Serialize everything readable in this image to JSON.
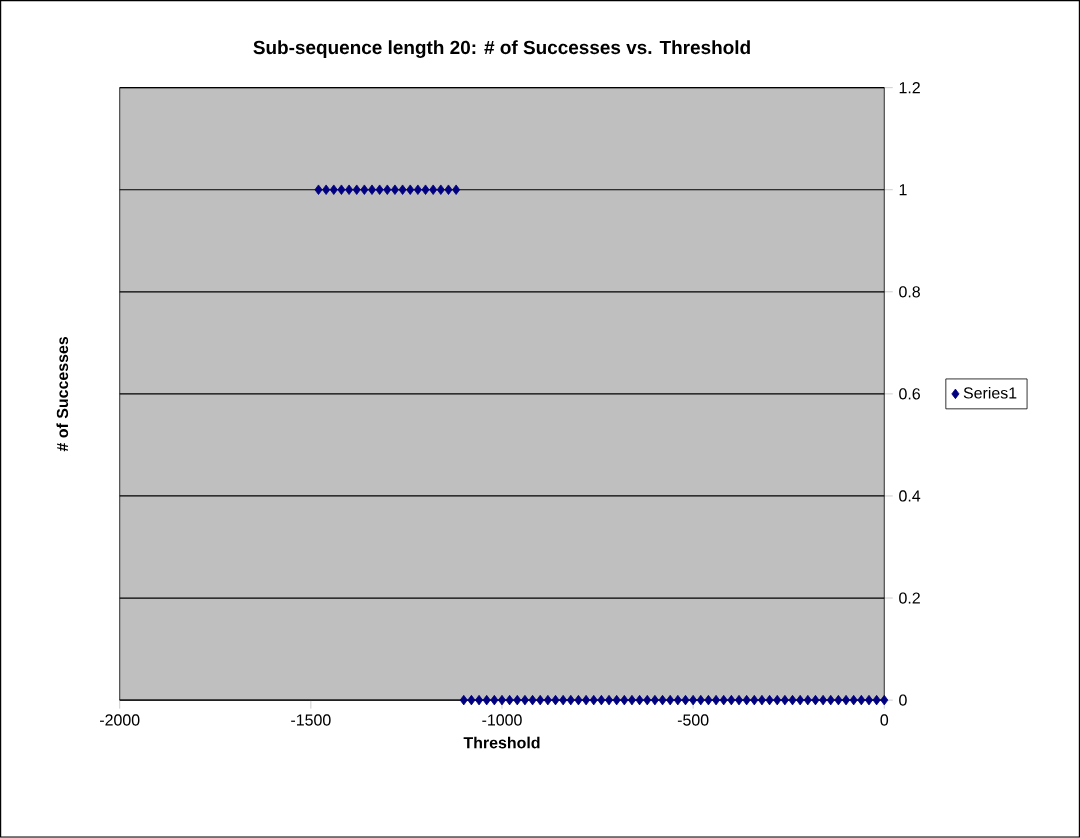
{
  "chart_data": {
    "type": "scatter",
    "title": "Sub-sequence length 20: # of Successes vs. Threshold",
    "xlabel": "Threshold",
    "ylabel": "# of Successes",
    "x": [
      -1480,
      -1460,
      -1440,
      -1420,
      -1400,
      -1380,
      -1360,
      -1340,
      -1320,
      -1300,
      -1280,
      -1260,
      -1240,
      -1220,
      -1200,
      -1180,
      -1160,
      -1140,
      -1120,
      -1100,
      -1080,
      -1060,
      -1040,
      -1020,
      -1000,
      -980,
      -960,
      -940,
      -920,
      -900,
      -880,
      -860,
      -840,
      -820,
      -800,
      -780,
      -760,
      -740,
      -720,
      -700,
      -680,
      -660,
      -640,
      -620,
      -600,
      -580,
      -560,
      -540,
      -520,
      -500,
      -480,
      -460,
      -440,
      -420,
      -400,
      -380,
      -360,
      -340,
      -320,
      -300,
      -280,
      -260,
      -240,
      -220,
      -200,
      -180,
      -160,
      -140,
      -120,
      -100,
      -80,
      -60,
      -40,
      -20,
      0
    ],
    "series": [
      {
        "name": "Series1",
        "color": "#000080",
        "values": [
          1,
          1,
          1,
          1,
          1,
          1,
          1,
          1,
          1,
          1,
          1,
          1,
          1,
          1,
          1,
          1,
          1,
          1,
          1,
          0,
          0,
          0,
          0,
          0,
          0,
          0,
          0,
          0,
          0,
          0,
          0,
          0,
          0,
          0,
          0,
          0,
          0,
          0,
          0,
          0,
          0,
          0,
          0,
          0,
          0,
          0,
          0,
          0,
          0,
          0,
          0,
          0,
          0,
          0,
          0,
          0,
          0,
          0,
          0,
          0,
          0,
          0,
          0,
          0,
          0,
          0,
          0,
          0,
          0,
          0,
          0,
          0,
          0,
          0,
          0
        ]
      }
    ],
    "xlim": [
      -2000,
      0
    ],
    "ylim": [
      0,
      1.2
    ],
    "xticks": [
      -2000,
      -1500,
      -1000,
      -500,
      0
    ],
    "yticks": [
      0,
      0.2,
      0.4,
      0.6,
      0.8,
      1,
      1.2
    ],
    "grid": "y",
    "legend": "right",
    "marker": "diamond"
  }
}
